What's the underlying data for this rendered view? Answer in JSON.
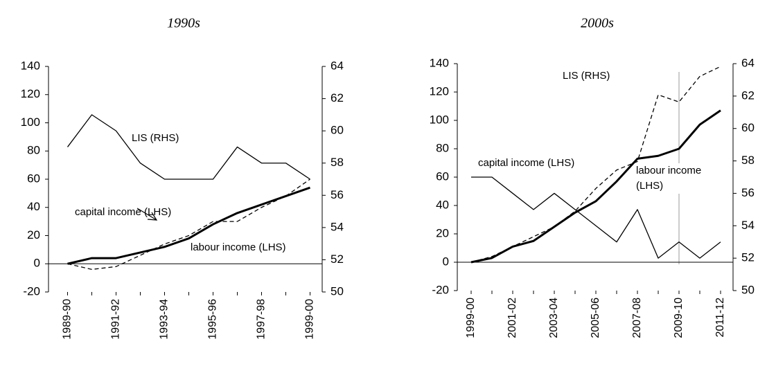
{
  "chart_data": [
    {
      "type": "line",
      "title": "1990s",
      "categories": [
        "1989-90",
        null,
        "1991-92",
        null,
        "1993-94",
        null,
        "1995-96",
        null,
        "1997-98",
        null,
        "1999-00"
      ],
      "ylim": [
        -20,
        140
      ],
      "yticks": [
        -20,
        0,
        20,
        40,
        60,
        80,
        100,
        120,
        140
      ],
      "y2lim": [
        50,
        64
      ],
      "y2ticks": [
        50,
        52,
        54,
        56,
        58,
        60,
        62,
        64
      ],
      "series": [
        {
          "name": "LIS (RHS)",
          "axis": "y2",
          "color": "#000000",
          "linestyle": "solid",
          "linewidth": 1.3,
          "values": [
            59,
            61,
            60,
            58,
            57,
            57,
            57,
            59,
            58,
            58,
            57
          ]
        },
        {
          "name": "capital income (LHS)",
          "color": "#000000",
          "linestyle": "dashed",
          "linewidth": 1.3,
          "values": [
            0,
            -4,
            -2,
            6,
            14,
            20,
            30,
            30,
            40,
            48,
            60
          ]
        },
        {
          "name": "labour income (LHS)",
          "color": "#000000",
          "linestyle": "solid",
          "linewidth": 3,
          "values": [
            0,
            4,
            4,
            8,
            12,
            18,
            28,
            36,
            42,
            48,
            54
          ]
        }
      ]
    },
    {
      "type": "line",
      "title": "2000s",
      "categories": [
        "1999-00",
        null,
        "2001-02",
        null,
        "2003-04",
        null,
        "2005-06",
        null,
        "2007-08",
        null,
        "2009-10",
        null,
        "2011-12"
      ],
      "ylim": [
        -20,
        140
      ],
      "yticks": [
        -20,
        0,
        20,
        40,
        60,
        80,
        100,
        120,
        140
      ],
      "y2lim": [
        50,
        64
      ],
      "y2ticks": [
        50,
        52,
        54,
        56,
        58,
        60,
        62,
        64
      ],
      "series": [
        {
          "name": "LIS (RHS)",
          "axis": "y2",
          "color": "#000000",
          "linestyle": "solid",
          "linewidth": 1.3,
          "values": [
            57,
            57,
            56,
            55,
            56,
            55,
            54,
            53,
            55,
            52,
            53,
            52,
            53
          ]
        },
        {
          "name": "capital income (LHS)",
          "color": "#000000",
          "linestyle": "dashed",
          "linewidth": 1.3,
          "values": [
            0,
            4,
            11,
            18,
            25,
            36,
            52,
            65,
            71,
            118,
            113,
            131,
            138
          ]
        },
        {
          "name": "labour income (LHS)",
          "color": "#000000",
          "linestyle": "solid",
          "linewidth": 3,
          "values": [
            0,
            3,
            11,
            15,
            25,
            35,
            43,
            57,
            73,
            75,
            80,
            97,
            107
          ]
        }
      ]
    }
  ]
}
